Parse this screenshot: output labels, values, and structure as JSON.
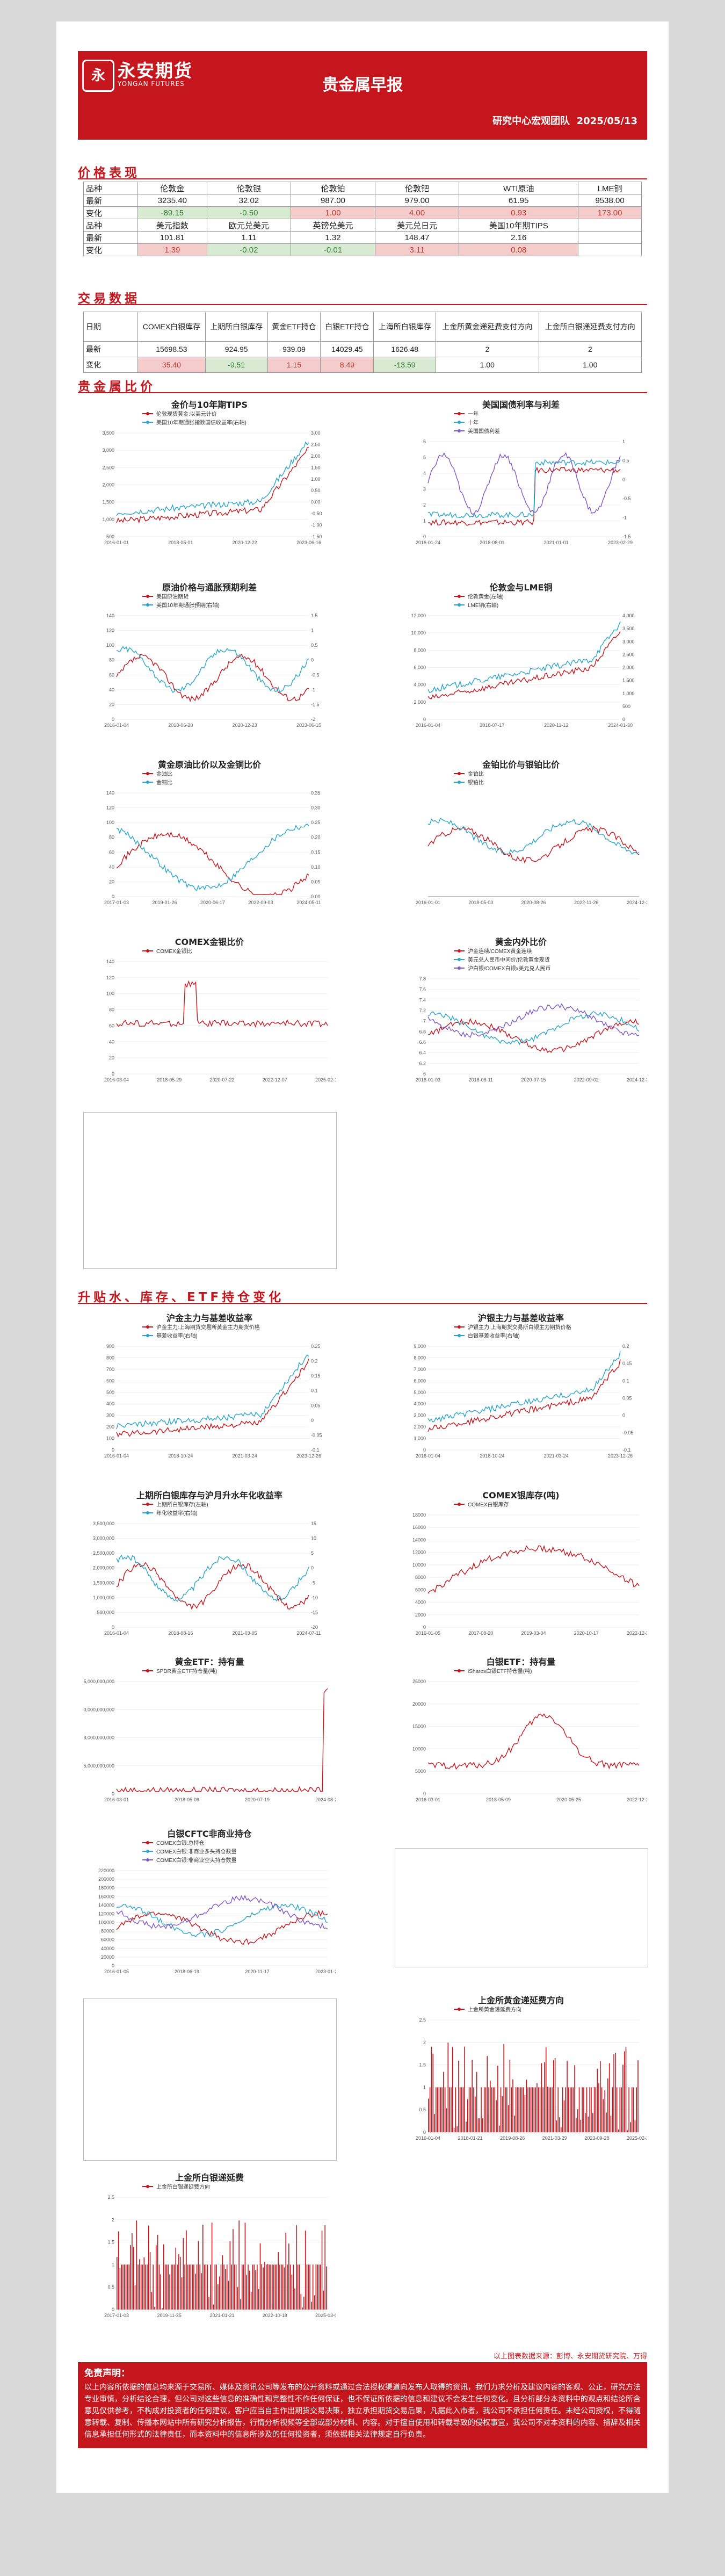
{
  "header": {
    "logo_text": "永安期货",
    "logo_en": "YONGAN FUTURES",
    "title": "贵金属早报",
    "subtitle": "研究中心宏观团队",
    "date": "2025/05/13"
  },
  "sections": {
    "price": "价格表现",
    "trade": "交易数据",
    "ratio": "贵金属比价",
    "inventory": "升贴水、库存、ETF持仓变化"
  },
  "price_table": {
    "row_labels": [
      "品种",
      "最新",
      "变化",
      "品种",
      "最新",
      "变化"
    ],
    "header1": [
      "伦敦金",
      "伦敦银",
      "伦敦铂",
      "伦敦钯",
      "WTI原油",
      "LME铜"
    ],
    "latest1": [
      "3235.40",
      "32.02",
      "987.00",
      "979.00",
      "61.95",
      "9538.00"
    ],
    "change1": [
      "-89.15",
      "-0.50",
      "1.00",
      "4.00",
      "0.93",
      "173.00"
    ],
    "change1_dir": [
      "down",
      "down",
      "up",
      "up",
      "up",
      "up"
    ],
    "header2": [
      "美元指数",
      "欧元兑美元",
      "英镑兑美元",
      "美元兑日元",
      "美国10年期TIPS"
    ],
    "latest2": [
      "101.81",
      "1.11",
      "1.32",
      "148.47",
      "2.16"
    ],
    "change2": [
      "1.39",
      "-0.02",
      "-0.01",
      "3.11",
      "0.08"
    ],
    "change2_dir": [
      "up",
      "down",
      "down",
      "up",
      "up"
    ]
  },
  "trade_table": {
    "row_labels": [
      "日期",
      "最新",
      "变化"
    ],
    "headers": [
      "COMEX白银库存",
      "上期所白银库存",
      "黄金ETF持仓",
      "白银ETF持仓",
      "上海所白银库存",
      "上金所黄金递延费支付方向",
      "上金所白银递延费支付方向"
    ],
    "latest": [
      "15698.53",
      "924.95",
      "939.09",
      "14029.45",
      "1626.48",
      "2",
      "2"
    ],
    "change": [
      "35.40",
      "-9.51",
      "1.15",
      "8.49",
      "-13.59",
      "1.00",
      "1.00"
    ],
    "change_dir": [
      "up",
      "down",
      "up",
      "up",
      "down",
      "",
      ""
    ]
  },
  "charts": [
    {
      "title": "金价与10年期TIPS",
      "legend": [
        "伦敦现货黄金:以美元计价",
        "美国10年期通胀指数国债收益率(右轴)"
      ],
      "xticks": [
        "2016-01-01",
        "2018-05-01",
        "2020-12-22",
        "2023-06-16"
      ],
      "yl": [
        "3,500",
        "3,000",
        "2,500",
        "2,000",
        "1,500",
        "1,000",
        "500"
      ],
      "yr": [
        "3.00",
        "2.50",
        "2.00",
        "1.50",
        "1.00",
        "0.50",
        "0.00",
        "-0.50",
        "-1.00",
        "-1.50"
      ],
      "colors": [
        "#c4161c",
        "#2aa5c7"
      ]
    },
    {
      "title": "美国国债利率与利差",
      "legend": [
        "一年",
        "十年",
        "美国国债利差"
      ],
      "xticks": [
        "2016-01-24",
        "2018-08-01",
        "2021-01-01",
        "2023-02-29"
      ],
      "yl": [
        "6",
        "5",
        "4",
        "3",
        "2",
        "1",
        "0"
      ],
      "yr": [
        "1",
        "0.5",
        "0",
        "-0.5",
        "-1",
        "-1.5"
      ],
      "colors": [
        "#c4161c",
        "#2aa5c7",
        "#7e57c2"
      ]
    },
    {
      "title": "原油价格与通胀预期利差",
      "legend": [
        "美国原油期货",
        "美国10年期通胀预期(右轴)"
      ],
      "xticks": [
        "2016-01-04",
        "2018-06-20",
        "2020-12-23",
        "2023-06-15"
      ],
      "yl": [
        "140",
        "120",
        "100",
        "80",
        "60",
        "40",
        "20",
        "0"
      ],
      "yr": [
        "1.5",
        "1",
        "0.5",
        "0",
        "-0.5",
        "-1",
        "-1.5",
        "-2"
      ],
      "colors": [
        "#c4161c",
        "#2aa5c7"
      ]
    },
    {
      "title": "伦敦金与LME铜",
      "legend": [
        "伦敦黄金(左轴)",
        "LME铜(右轴)"
      ],
      "xticks": [
        "2016-01-04",
        "2018-07-17",
        "2020-11-12",
        "2024-01-30"
      ],
      "yl": [
        "12,000",
        "10,000",
        "8,000",
        "6,000",
        "4,000",
        "2,000",
        "0"
      ],
      "yr": [
        "4,000",
        "3,500",
        "3,000",
        "2,500",
        "2,000",
        "1,500",
        "1,000",
        "500",
        "0"
      ],
      "colors": [
        "#c4161c",
        "#2aa5c7"
      ]
    },
    {
      "title": "黄金原油比价以及金铜比价",
      "legend": [
        "金油比",
        "金铜比"
      ],
      "xticks": [
        "2017-01-03",
        "2019-01-26",
        "2020-06-17",
        "2022-09-03",
        "2024-05-11"
      ],
      "yl": [
        "140",
        "120",
        "100",
        "80",
        "60",
        "40",
        "20",
        "0"
      ],
      "yr": [
        "0.35",
        "0.30",
        "0.25",
        "0.20",
        "0.15",
        "0.10",
        "0.05",
        "0.00"
      ],
      "colors": [
        "#c4161c",
        "#2aa5c7"
      ]
    },
    {
      "title": "金铂比价与银铂比价",
      "legend": [
        "金铂比",
        "银铂比"
      ],
      "xticks": [
        "2016-01-01",
        "2018-05-03",
        "2020-08-26",
        "2022-11-26",
        "2024-12-31"
      ],
      "yl": [],
      "yr": [],
      "colors": [
        "#c4161c",
        "#2aa5c7"
      ]
    },
    {
      "title": "COMEX金银比价",
      "legend": [
        "COMEX金银比"
      ],
      "xticks": [
        "2016-03-04",
        "2018-05-29",
        "2020-07-22",
        "2022-12-07",
        "2025-02-19"
      ],
      "yl": [
        "140",
        "120",
        "100",
        "80",
        "60",
        "40",
        "20",
        "0"
      ],
      "yr": [],
      "colors": [
        "#c4161c"
      ]
    },
    {
      "title": "黄金内外比价",
      "legend": [
        "沪金连续/COMEX黄金连续",
        "美元兑人民币中间价/伦敦黄金现货",
        "沪白银/COMEX白银x美元兑人民币"
      ],
      "xticks": [
        "2016-01-03",
        "2018-06-11",
        "2020-07-15",
        "2022-09-02",
        "2024-12-31"
      ],
      "yl": [
        "7.8",
        "7.6",
        "7.4",
        "7.2",
        "7",
        "6.8",
        "6.6",
        "6.4",
        "6.2",
        "6"
      ],
      "yr": [],
      "colors": [
        "#c4161c",
        "#2aa5c7",
        "#7e57c2"
      ]
    },
    {
      "title": "沪金主力与基差收益率",
      "legend": [
        "沪金主力:上海期货交易所黄金主力期货价格",
        "基差收益率(右轴)"
      ],
      "xticks": [
        "2016-01-04",
        "2018-10-24",
        "2021-03-24",
        "2023-12-26"
      ],
      "yl": [
        "900",
        "800",
        "700",
        "600",
        "500",
        "400",
        "300",
        "200",
        "100",
        "0"
      ],
      "yr": [
        "0.25",
        "0.2",
        "0.15",
        "0.1",
        "0.05",
        "0",
        "-0.05",
        "-0.1"
      ],
      "colors": [
        "#c4161c",
        "#2aa5c7"
      ]
    },
    {
      "title": "沪银主力与基差收益率",
      "legend": [
        "沪银主力:上海期货交易所白银主力期货价格",
        "白银基差收益率(右轴)"
      ],
      "xticks": [
        "2016-01-04",
        "2018-10-24",
        "2021-03-24",
        "2023-12-26"
      ],
      "yl": [
        "9,000",
        "8,000",
        "7,000",
        "6,000",
        "5,000",
        "4,000",
        "3,000",
        "2,000",
        "1,000",
        "0"
      ],
      "yr": [
        "0.2",
        "0.15",
        "0.1",
        "0.05",
        "0",
        "-0.05",
        "-0.1"
      ],
      "colors": [
        "#c4161c",
        "#2aa5c7"
      ]
    },
    {
      "title": "上期所白银库存与沪月升水年化收益率",
      "legend": [
        "上期所白银库存(左轴)",
        "年化收益率(右轴)"
      ],
      "xticks": [
        "2016-01-04",
        "2018-08-16",
        "2021-03-05",
        "2024-07-11"
      ],
      "yl": [
        "3,500,000",
        "3,000,000",
        "2,500,000",
        "2,000,000",
        "1,500,000",
        "1,000,000",
        "500,000",
        "0"
      ],
      "yr": [
        "15",
        "10",
        "5",
        "0",
        "-5",
        "-10",
        "-15",
        "-20"
      ],
      "colors": [
        "#c4161c",
        "#2aa5c7"
      ]
    },
    {
      "title": "COMEX银库存(吨)",
      "legend": [
        "COMEX白银库存"
      ],
      "xticks": [
        "2016-01-05",
        "2017-08-20",
        "2019-03-04",
        "2020-10-17",
        "2022-12-27"
      ],
      "yl": [
        "18000",
        "16000",
        "14000",
        "12000",
        "10000",
        "8000",
        "6000",
        "4000",
        "2000",
        "0"
      ],
      "yr": [],
      "colors": [
        "#c4161c"
      ]
    },
    {
      "title": "黄金ETF：持有量",
      "legend": [
        "SPDR黄金ETF持仓量(吨)"
      ],
      "xticks": [
        "2016-03-01",
        "2018-05-09",
        "2020-07-19",
        "2024-08-29"
      ],
      "yl": [
        "15,000,000,000",
        "10,000,000,000",
        "8,000,000,000",
        "5,000,000,000",
        "0"
      ],
      "yr": [],
      "colors": [
        "#c4161c"
      ]
    },
    {
      "title": "白银ETF：持有量",
      "legend": [
        "iShares白银ETF持仓量(吨)"
      ],
      "xticks": [
        "2016-03-01",
        "2018-05-09",
        "2020-05-25",
        "2022-12-20"
      ],
      "yl": [
        "25000",
        "20000",
        "15000",
        "10000",
        "5000",
        "0"
      ],
      "yr": [],
      "colors": [
        "#c4161c"
      ]
    },
    {
      "title": "白银CFTC非商业持仓",
      "legend": [
        "COMEX白银:总持仓",
        "COMEX白银:非商业多头持仓数量",
        "COMEX白银:非商业空头持仓数量"
      ],
      "xticks": [
        "2016-01-05",
        "2018-06-19",
        "2020-11-17",
        "2023-01-25"
      ],
      "yl": [
        "220000",
        "200000",
        "180000",
        "160000",
        "140000",
        "120000",
        "100000",
        "80000",
        "60000",
        "40000",
        "20000",
        "0"
      ],
      "yr": [],
      "colors": [
        "#c4161c",
        "#2aa5c7",
        "#7e57c2"
      ]
    },
    {
      "title": "上金所黄金递延费方向",
      "legend": [
        "上金所黄金递延费方向"
      ],
      "xticks": [
        "2016-01-04",
        "2018-01-21",
        "2019-08-26",
        "2021-03-29",
        "2023-09-28",
        "2025-02-10"
      ],
      "yl": [
        "2.5",
        "2",
        "1.5",
        "1",
        "0.5",
        "0"
      ],
      "yr": [],
      "colors": [
        "#c4161c"
      ]
    },
    {
      "title": "上金所白银递延费",
      "legend": [
        "上金所白银递延费方向"
      ],
      "xticks": [
        "2017-01-03",
        "2019-11-25",
        "2021-01-21",
        "2022-10-18",
        "2025-03-05"
      ],
      "yl": [
        "2.5",
        "2",
        "1.5",
        "1",
        "0.5",
        "0"
      ],
      "yr": [],
      "colors": [
        "#c4161c"
      ]
    }
  ],
  "footer_note": "以上图表数据来源：彭博、永安期货研究院、万得",
  "disclaimer": {
    "title": "免责声明：",
    "text": "以上内容所依据的信息均来源于交易所、媒体及资讯公司等发布的公开资料或通过合法授权渠道向发布人取得的资讯，我们力求分析及建议内容的客观、公正，研究方法专业审慎，分析结论合理，但公司对这些信息的准确性和完整性不作任何保证，也不保证所依据的信息和建议不会发生任何变化。且分析部分本资料中的观点和结论所含意见仅供参考，不构成对投资者的任何建议，客户应当自主作出期货交易决策，独立承担期货交易后果，凡据此入市者，我公司不承担任何责任。未经公司授权，不得随意转载、复制、传播本网站中所有研究分析报告，行情分析视频等全部或部分材料、内容。对于擅自使用和转载导致的侵权事宜，我公司不对本资料的内容、措辞及相关信息承担任何形式的法律责任，而本资料中的信息所涉及的任何投资者，须依据相关法律规定自行负责。"
  }
}
